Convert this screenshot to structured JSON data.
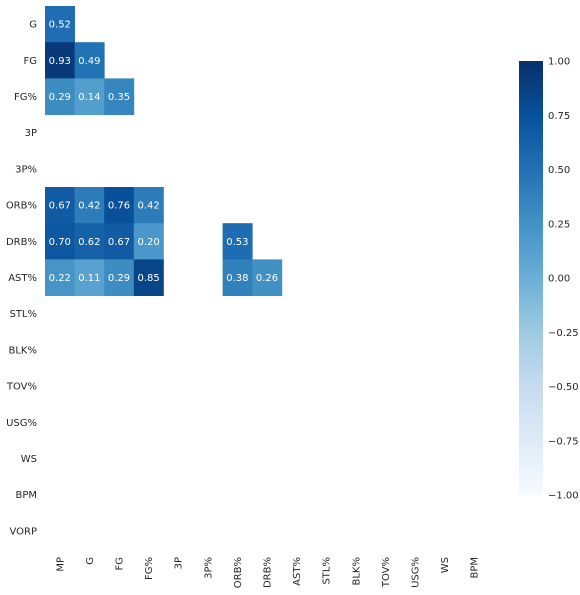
{
  "chart_data": {
    "type": "heatmap",
    "colormap": "Blues",
    "colorbar": {
      "range": [
        -1.0,
        1.0
      ],
      "ticks": [
        "1.00",
        "0.75",
        "0.50",
        "0.25",
        "0.00",
        "−0.25",
        "−0.50",
        "−0.75",
        "−1.00"
      ],
      "tick_values": [
        1.0,
        0.75,
        0.5,
        0.25,
        0.0,
        -0.25,
        -0.5,
        -0.75,
        -1.0
      ]
    },
    "row_labels": [
      "G",
      "FG",
      "FG%",
      "3P",
      "3P%",
      "ORB%",
      "DRB%",
      "AST%",
      "STL%",
      "BLK%",
      "TOV%",
      "USG%",
      "WS",
      "BPM",
      "VORP"
    ],
    "col_labels": [
      "MP",
      "G",
      "FG",
      "FG%",
      "3P",
      "3P%",
      "ORB%",
      "DRB%",
      "AST%",
      "STL%",
      "BLK%",
      "TOV%",
      "USG%",
      "WS",
      "BPM"
    ],
    "cells": [
      {
        "row": 0,
        "col": 0,
        "value": 0.52,
        "label": "0.52"
      },
      {
        "row": 1,
        "col": 0,
        "value": 0.93,
        "label": "0.93"
      },
      {
        "row": 1,
        "col": 1,
        "value": 0.49,
        "label": "0.49"
      },
      {
        "row": 2,
        "col": 0,
        "value": 0.29,
        "label": "0.29"
      },
      {
        "row": 2,
        "col": 1,
        "value": 0.14,
        "label": "0.14"
      },
      {
        "row": 2,
        "col": 2,
        "value": 0.35,
        "label": "0.35"
      },
      {
        "row": 5,
        "col": 0,
        "value": 0.67,
        "label": "0.67"
      },
      {
        "row": 5,
        "col": 1,
        "value": 0.42,
        "label": "0.42"
      },
      {
        "row": 5,
        "col": 2,
        "value": 0.76,
        "label": "0.76"
      },
      {
        "row": 5,
        "col": 3,
        "value": 0.42,
        "label": "0.42"
      },
      {
        "row": 6,
        "col": 0,
        "value": 0.7,
        "label": "0.70"
      },
      {
        "row": 6,
        "col": 1,
        "value": 0.62,
        "label": "0.62"
      },
      {
        "row": 6,
        "col": 2,
        "value": 0.67,
        "label": "0.67"
      },
      {
        "row": 6,
        "col": 3,
        "value": 0.2,
        "label": "0.20"
      },
      {
        "row": 6,
        "col": 6,
        "value": 0.53,
        "label": "0.53"
      },
      {
        "row": 7,
        "col": 0,
        "value": 0.22,
        "label": "0.22"
      },
      {
        "row": 7,
        "col": 1,
        "value": 0.11,
        "label": "0.11"
      },
      {
        "row": 7,
        "col": 2,
        "value": 0.29,
        "label": "0.29"
      },
      {
        "row": 7,
        "col": 3,
        "value": 0.85,
        "label": "0.85"
      },
      {
        "row": 7,
        "col": 6,
        "value": 0.38,
        "label": "0.38"
      },
      {
        "row": 7,
        "col": 7,
        "value": 0.26,
        "label": "0.26"
      }
    ]
  }
}
